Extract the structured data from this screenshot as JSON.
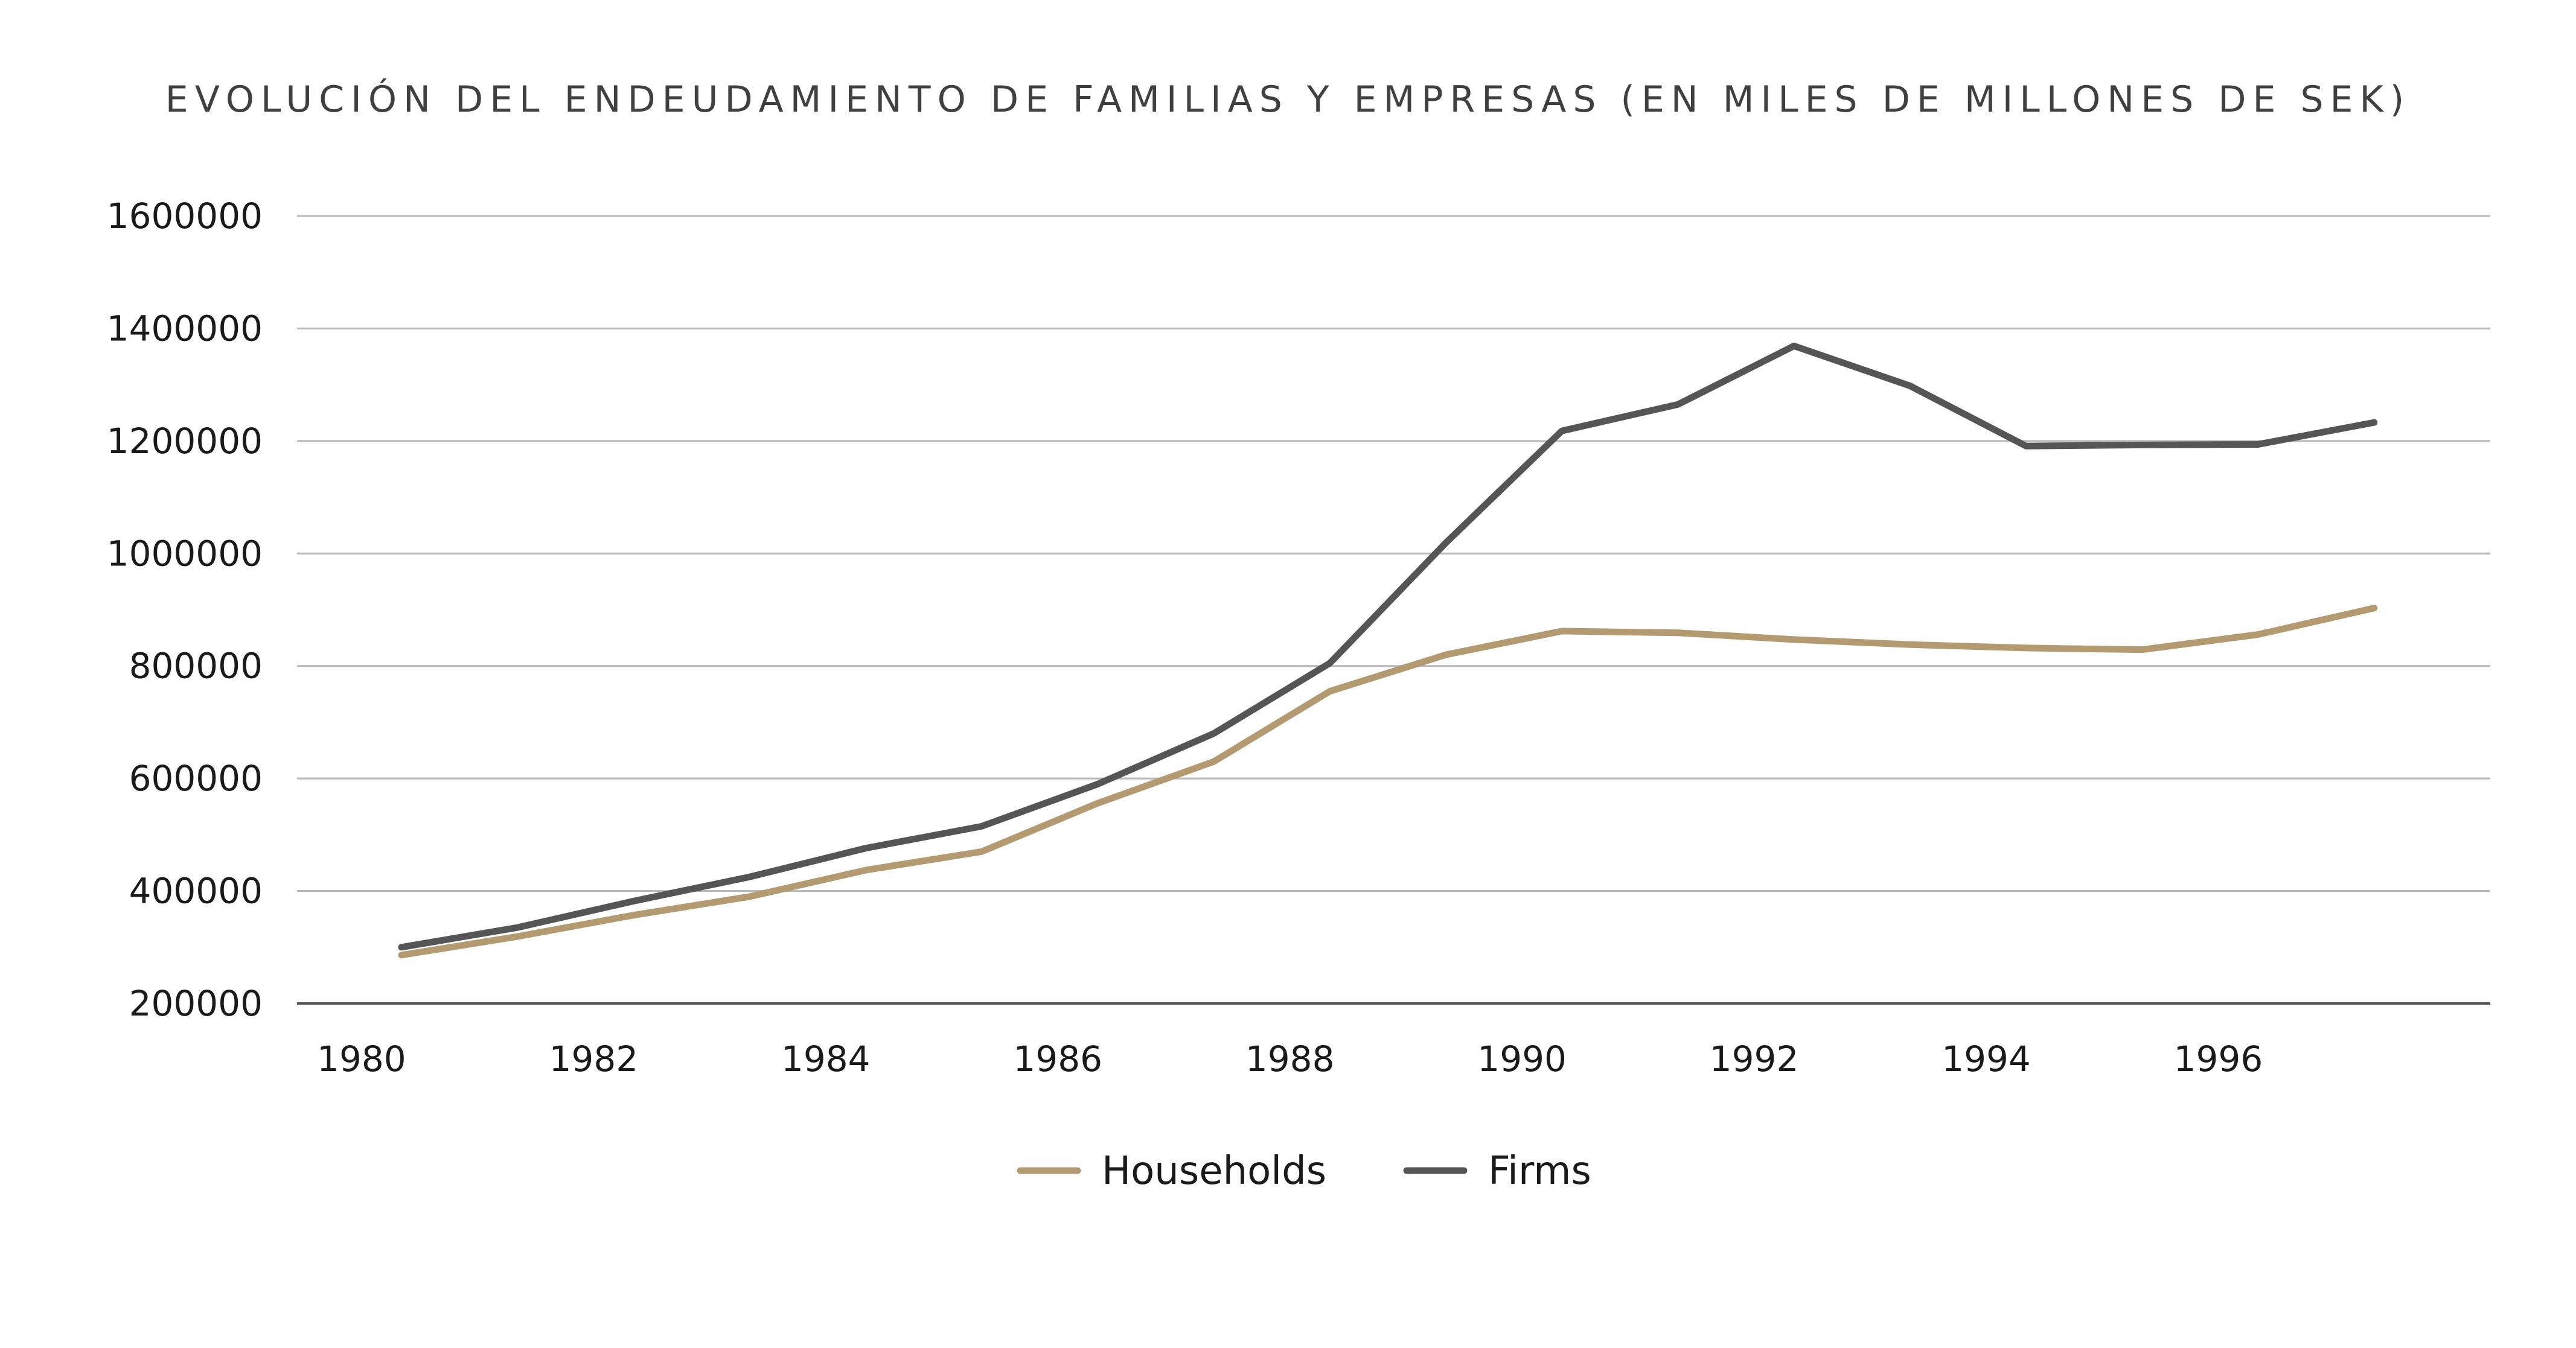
{
  "chart_data": {
    "type": "line",
    "title": "EVOLUCIÓN DEL ENDEUDAMIENTO DE FAMILIAS Y EMPRESAS (EN MILES DE MILLONES DE SEK)",
    "xlabel": "",
    "ylabel": "",
    "x": [
      1980.5,
      1981.5,
      1982.5,
      1983.5,
      1984.5,
      1985.5,
      1986.5,
      1987.5,
      1988.5,
      1989.5,
      1990.5,
      1991.5,
      1992.5,
      1993.5,
      1994.5,
      1995.5,
      1996.5,
      1997.5
    ],
    "xlim": [
      1979.6,
      1998.5
    ],
    "xticks": [
      "1980",
      "1982",
      "1984",
      "1986",
      "1988",
      "1990",
      "1992",
      "1994",
      "1996"
    ],
    "xtick_values": [
      1980,
      1982,
      1984,
      1986,
      1988,
      1990,
      1992,
      1994,
      1996
    ],
    "ylim": [
      200000,
      1600000
    ],
    "yticks": [
      "1600000",
      "1400000",
      "1200000",
      "1000000",
      "800000",
      "600000",
      "400000",
      "200000"
    ],
    "ytick_values": [
      1600000,
      1400000,
      1200000,
      1000000,
      800000,
      600000,
      400000,
      200000
    ],
    "grid": true,
    "legend_position": "bottom-center",
    "series": [
      {
        "name": "Households",
        "color": "#b49a70",
        "values": [
          286000,
          319000,
          357000,
          390000,
          437000,
          470000,
          556000,
          630000,
          755000,
          820000,
          862000,
          859000,
          847000,
          838000,
          832000,
          829000,
          856000,
          903000
        ]
      },
      {
        "name": "Firms",
        "color": "#555555",
        "values": [
          300000,
          335000,
          382000,
          425000,
          476000,
          515000,
          590000,
          680000,
          805000,
          1019000,
          1218000,
          1265000,
          1369000,
          1298000,
          1191000,
          1193000,
          1194000,
          1233000
        ]
      }
    ]
  }
}
